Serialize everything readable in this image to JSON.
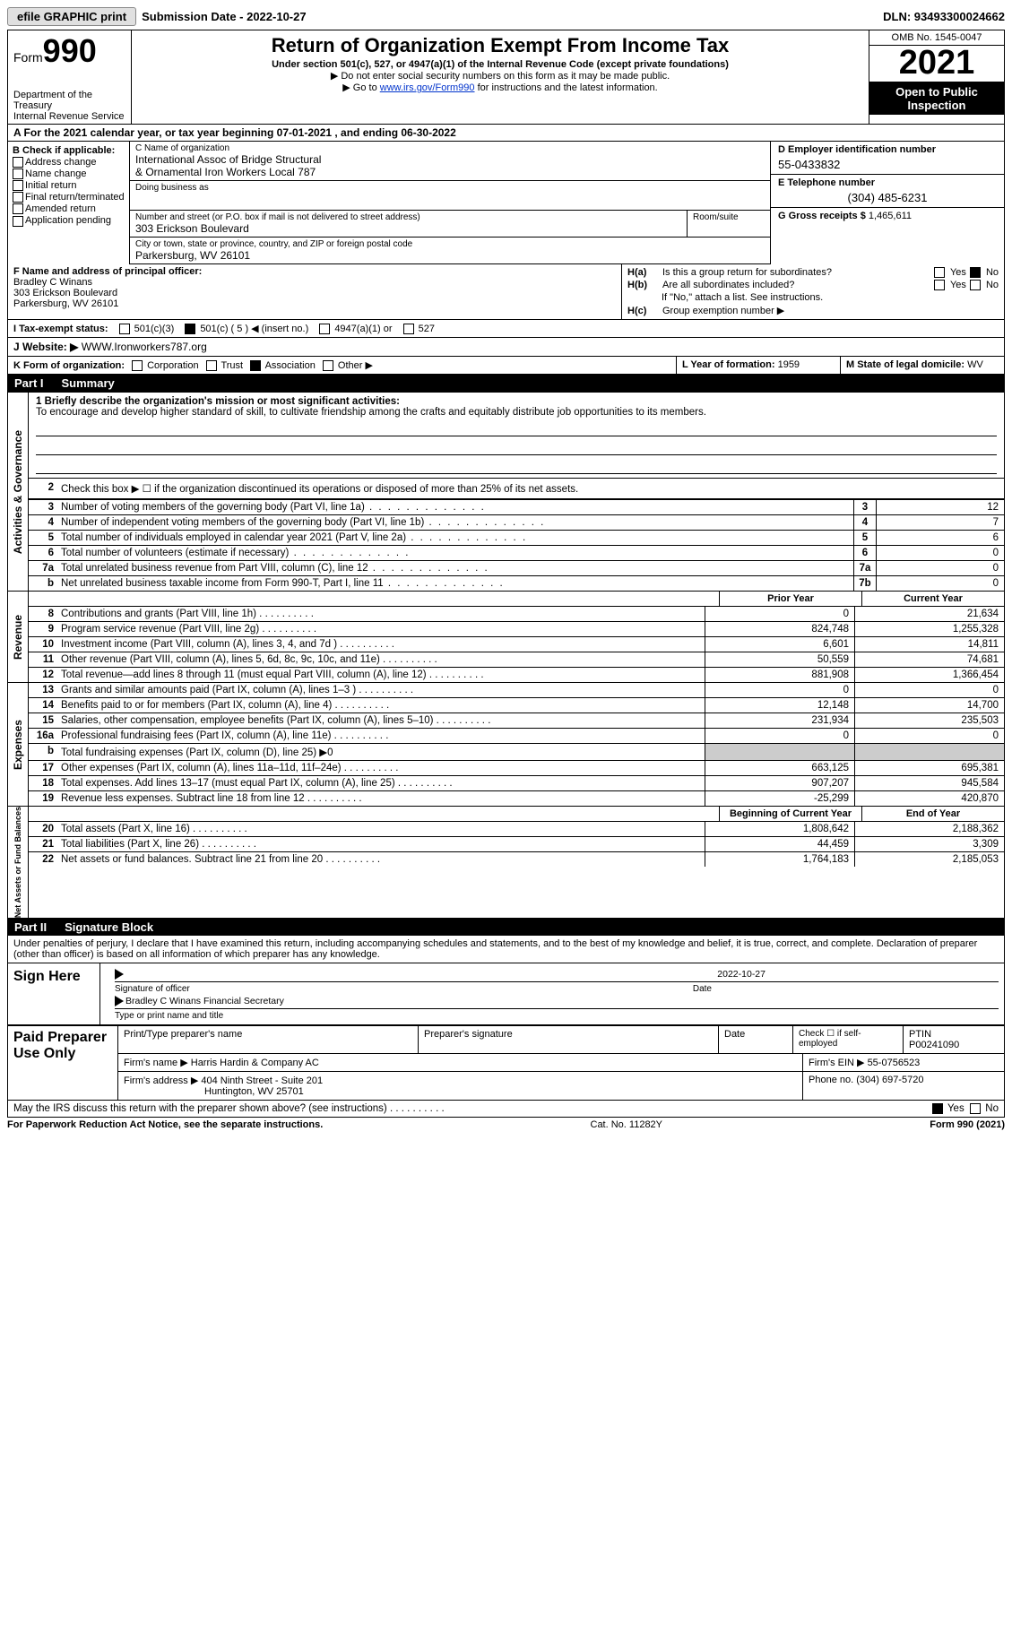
{
  "topbar": {
    "efile_label": "efile GRAPHIC print",
    "submission_label": "Submission Date - 2022-10-27",
    "dln_label": "DLN: 93493300024662"
  },
  "header": {
    "form_prefix": "Form",
    "form_number": "990",
    "dept": "Department of the Treasury\nInternal Revenue Service",
    "title": "Return of Organization Exempt From Income Tax",
    "subtitle": "Under section 501(c), 527, or 4947(a)(1) of the Internal Revenue Code (except private foundations)",
    "note1": "▶ Do not enter social security numbers on this form as it may be made public.",
    "note2_prefix": "▶ Go to ",
    "note2_link": "www.irs.gov/Form990",
    "note2_suffix": " for instructions and the latest information.",
    "omb": "OMB No. 1545-0047",
    "year": "2021",
    "open_pub": "Open to Public Inspection"
  },
  "row_a": "A For the 2021 calendar year, or tax year beginning 07-01-2021   , and ending 06-30-2022",
  "box_b": {
    "label": "B Check if applicable:",
    "items": [
      "Address change",
      "Name change",
      "Initial return",
      "Final return/terminated",
      "Amended return",
      "Application pending"
    ]
  },
  "box_c": {
    "name_lbl": "C Name of organization",
    "name_val": "International Assoc of Bridge Structural\n& Ornamental Iron Workers Local 787",
    "dba_lbl": "Doing business as",
    "street_lbl": "Number and street (or P.O. box if mail is not delivered to street address)",
    "street_val": "303 Erickson Boulevard",
    "room_lbl": "Room/suite",
    "city_lbl": "City or town, state or province, country, and ZIP or foreign postal code",
    "city_val": "Parkersburg, WV  26101"
  },
  "box_d": {
    "ein_lbl": "D Employer identification number",
    "ein_val": "55-0433832",
    "tel_lbl": "E Telephone number",
    "tel_val": "(304) 485-6231",
    "gross_lbl": "G Gross receipts $",
    "gross_val": "1,465,611"
  },
  "box_f": {
    "lbl": "F  Name and address of principal officer:",
    "name": "Bradley C Winans",
    "addr1": "303 Erickson Boulevard",
    "addr2": "Parkersburg, WV  26101"
  },
  "box_h": {
    "ha_lbl": "H(a)  Is this a group return for subordinates?",
    "hb_lbl": "H(b)  Are all subordinates included?",
    "hb_note": "If \"No,\" attach a list. See instructions.",
    "hc_lbl": "H(c)  Group exemption number ▶",
    "yes": "Yes",
    "no": "No"
  },
  "tax_status": {
    "lbl": "I   Tax-exempt status:",
    "opts": [
      "501(c)(3)",
      "501(c) ( 5 ) ◀ (insert no.)",
      "4947(a)(1) or",
      "527"
    ]
  },
  "website": {
    "lbl": "J  Website: ▶",
    "val": "WWW.Ironworkers787.org"
  },
  "k_row": {
    "lbl": "K Form of organization:",
    "opts": [
      "Corporation",
      "Trust",
      "Association",
      "Other ▶"
    ],
    "l_lbl": "L Year of formation:",
    "l_val": "1959",
    "m_lbl": "M State of legal domicile:",
    "m_val": "WV"
  },
  "part1": {
    "hdr": "Part I",
    "title": "Summary"
  },
  "summary": {
    "q1_lbl": "1   Briefly describe the organization's mission or most significant activities:",
    "q1_val": "To encourage and develop higher standard of skill, to cultivate friendship among the crafts and equitably distribute job opportunities to its members.",
    "q2": "Check this box ▶ ☐ if the organization discontinued its operations or disposed of more than 25% of its net assets.",
    "rows_ag": [
      {
        "n": "3",
        "t": "Number of voting members of the governing body (Part VI, line 1a)",
        "box": "3",
        "v": "12"
      },
      {
        "n": "4",
        "t": "Number of independent voting members of the governing body (Part VI, line 1b)",
        "box": "4",
        "v": "7"
      },
      {
        "n": "5",
        "t": "Total number of individuals employed in calendar year 2021 (Part V, line 2a)",
        "box": "5",
        "v": "6"
      },
      {
        "n": "6",
        "t": "Total number of volunteers (estimate if necessary)",
        "box": "6",
        "v": "0"
      },
      {
        "n": "7a",
        "t": "Total unrelated business revenue from Part VIII, column (C), line 12",
        "box": "7a",
        "v": "0"
      },
      {
        "n": "b",
        "t": "Net unrelated business taxable income from Form 990-T, Part I, line 11",
        "box": "7b",
        "v": "0"
      }
    ],
    "col_hdr_prior": "Prior Year",
    "col_hdr_curr": "Current Year",
    "revenue": [
      {
        "n": "8",
        "t": "Contributions and grants (Part VIII, line 1h)",
        "p": "0",
        "c": "21,634"
      },
      {
        "n": "9",
        "t": "Program service revenue (Part VIII, line 2g)",
        "p": "824,748",
        "c": "1,255,328"
      },
      {
        "n": "10",
        "t": "Investment income (Part VIII, column (A), lines 3, 4, and 7d )",
        "p": "6,601",
        "c": "14,811"
      },
      {
        "n": "11",
        "t": "Other revenue (Part VIII, column (A), lines 5, 6d, 8c, 9c, 10c, and 11e)",
        "p": "50,559",
        "c": "74,681"
      },
      {
        "n": "12",
        "t": "Total revenue—add lines 8 through 11 (must equal Part VIII, column (A), line 12)",
        "p": "881,908",
        "c": "1,366,454"
      }
    ],
    "expenses": [
      {
        "n": "13",
        "t": "Grants and similar amounts paid (Part IX, column (A), lines 1–3 )",
        "p": "0",
        "c": "0"
      },
      {
        "n": "14",
        "t": "Benefits paid to or for members (Part IX, column (A), line 4)",
        "p": "12,148",
        "c": "14,700"
      },
      {
        "n": "15",
        "t": "Salaries, other compensation, employee benefits (Part IX, column (A), lines 5–10)",
        "p": "231,934",
        "c": "235,503"
      },
      {
        "n": "16a",
        "t": "Professional fundraising fees (Part IX, column (A), line 11e)",
        "p": "0",
        "c": "0"
      },
      {
        "n": "b",
        "t": "Total fundraising expenses (Part IX, column (D), line 25) ▶0",
        "gray": true
      },
      {
        "n": "17",
        "t": "Other expenses (Part IX, column (A), lines 11a–11d, 11f–24e)",
        "p": "663,125",
        "c": "695,381"
      },
      {
        "n": "18",
        "t": "Total expenses. Add lines 13–17 (must equal Part IX, column (A), line 25)",
        "p": "907,207",
        "c": "945,584"
      },
      {
        "n": "19",
        "t": "Revenue less expenses. Subtract line 18 from line 12",
        "p": "-25,299",
        "c": "420,870"
      }
    ],
    "col_hdr_boy": "Beginning of Current Year",
    "col_hdr_eoy": "End of Year",
    "netassets": [
      {
        "n": "20",
        "t": "Total assets (Part X, line 16)",
        "p": "1,808,642",
        "c": "2,188,362"
      },
      {
        "n": "21",
        "t": "Total liabilities (Part X, line 26)",
        "p": "44,459",
        "c": "3,309"
      },
      {
        "n": "22",
        "t": "Net assets or fund balances. Subtract line 21 from line 20",
        "p": "1,764,183",
        "c": "2,185,053"
      }
    ],
    "side_ag": "Activities & Governance",
    "side_rev": "Revenue",
    "side_exp": "Expenses",
    "side_na": "Net Assets or Fund Balances"
  },
  "part2": {
    "hdr": "Part II",
    "title": "Signature Block"
  },
  "sig": {
    "decl": "Under penalties of perjury, I declare that I have examined this return, including accompanying schedules and statements, and to the best of my knowledge and belief, it is true, correct, and complete. Declaration of preparer (other than officer) is based on all information of which preparer has any knowledge.",
    "sign_here": "Sign Here",
    "date": "2022-10-27",
    "sig_of_officer": "Signature of officer",
    "date_lbl": "Date",
    "name_title": "Bradley C Winans  Financial Secretary",
    "type_lbl": "Type or print name and title"
  },
  "prep": {
    "title": "Paid Preparer Use Only",
    "r1_c1": "Print/Type preparer's name",
    "r1_c2": "Preparer's signature",
    "r1_c3": "Date",
    "r1_c4a": "Check ☐ if self-employed",
    "r1_c4b": "PTIN",
    "r1_ptin": "P00241090",
    "r2_lbl": "Firm's name    ▶",
    "r2_val": "Harris Hardin & Company AC",
    "r2_ein_lbl": "Firm's EIN ▶",
    "r2_ein": "55-0756523",
    "r3_lbl": "Firm's address ▶",
    "r3_val1": "404 Ninth Street - Suite 201",
    "r3_val2": "Huntington, WV  25701",
    "r3_ph_lbl": "Phone no.",
    "r3_ph": "(304) 697-5720"
  },
  "discuss": {
    "q": "May the IRS discuss this return with the preparer shown above? (see instructions)",
    "yes": "Yes",
    "no": "No"
  },
  "footer": {
    "left": "For Paperwork Reduction Act Notice, see the separate instructions.",
    "mid": "Cat. No. 11282Y",
    "right": "Form 990 (2021)"
  }
}
